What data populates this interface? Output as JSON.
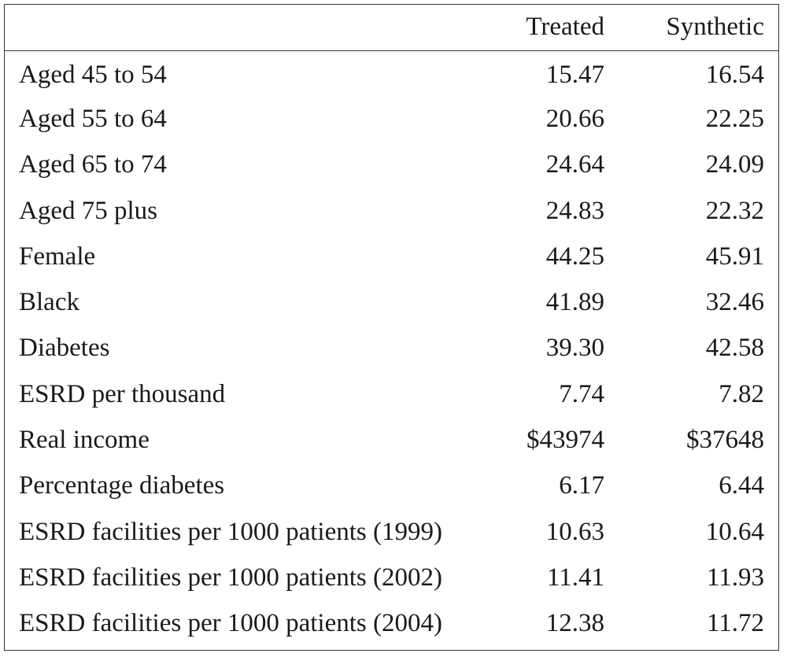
{
  "table": {
    "headers": {
      "label": "",
      "treated": "Treated",
      "synthetic": "Synthetic"
    },
    "rows": [
      {
        "label": "Aged 45 to 54",
        "treated": "15.47",
        "synthetic": "16.54"
      },
      {
        "label": "Aged 55 to 64",
        "treated": "20.66",
        "synthetic": "22.25"
      },
      {
        "label": "Aged 65 to 74",
        "treated": "24.64",
        "synthetic": "24.09"
      },
      {
        "label": "Aged 75 plus",
        "treated": "24.83",
        "synthetic": "22.32"
      },
      {
        "label": "Female",
        "treated": "44.25",
        "synthetic": "45.91"
      },
      {
        "label": "Black",
        "treated": "41.89",
        "synthetic": "32.46"
      },
      {
        "label": "Diabetes",
        "treated": "39.30",
        "synthetic": "42.58"
      },
      {
        "label": "ESRD per thousand",
        "treated": "7.74",
        "synthetic": "7.82"
      },
      {
        "label": "Real income",
        "treated": "$43974",
        "synthetic": "$37648"
      },
      {
        "label": "Percentage diabetes",
        "treated": "6.17",
        "synthetic": "6.44"
      },
      {
        "label": "ESRD facilities per 1000 patients (1999)",
        "treated": "10.63",
        "synthetic": "10.64"
      },
      {
        "label": "ESRD facilities per 1000 patients (2002)",
        "treated": "11.41",
        "synthetic": "11.93"
      },
      {
        "label": "ESRD facilities per 1000 patients (2004)",
        "treated": "12.38",
        "synthetic": "11.72"
      }
    ]
  }
}
